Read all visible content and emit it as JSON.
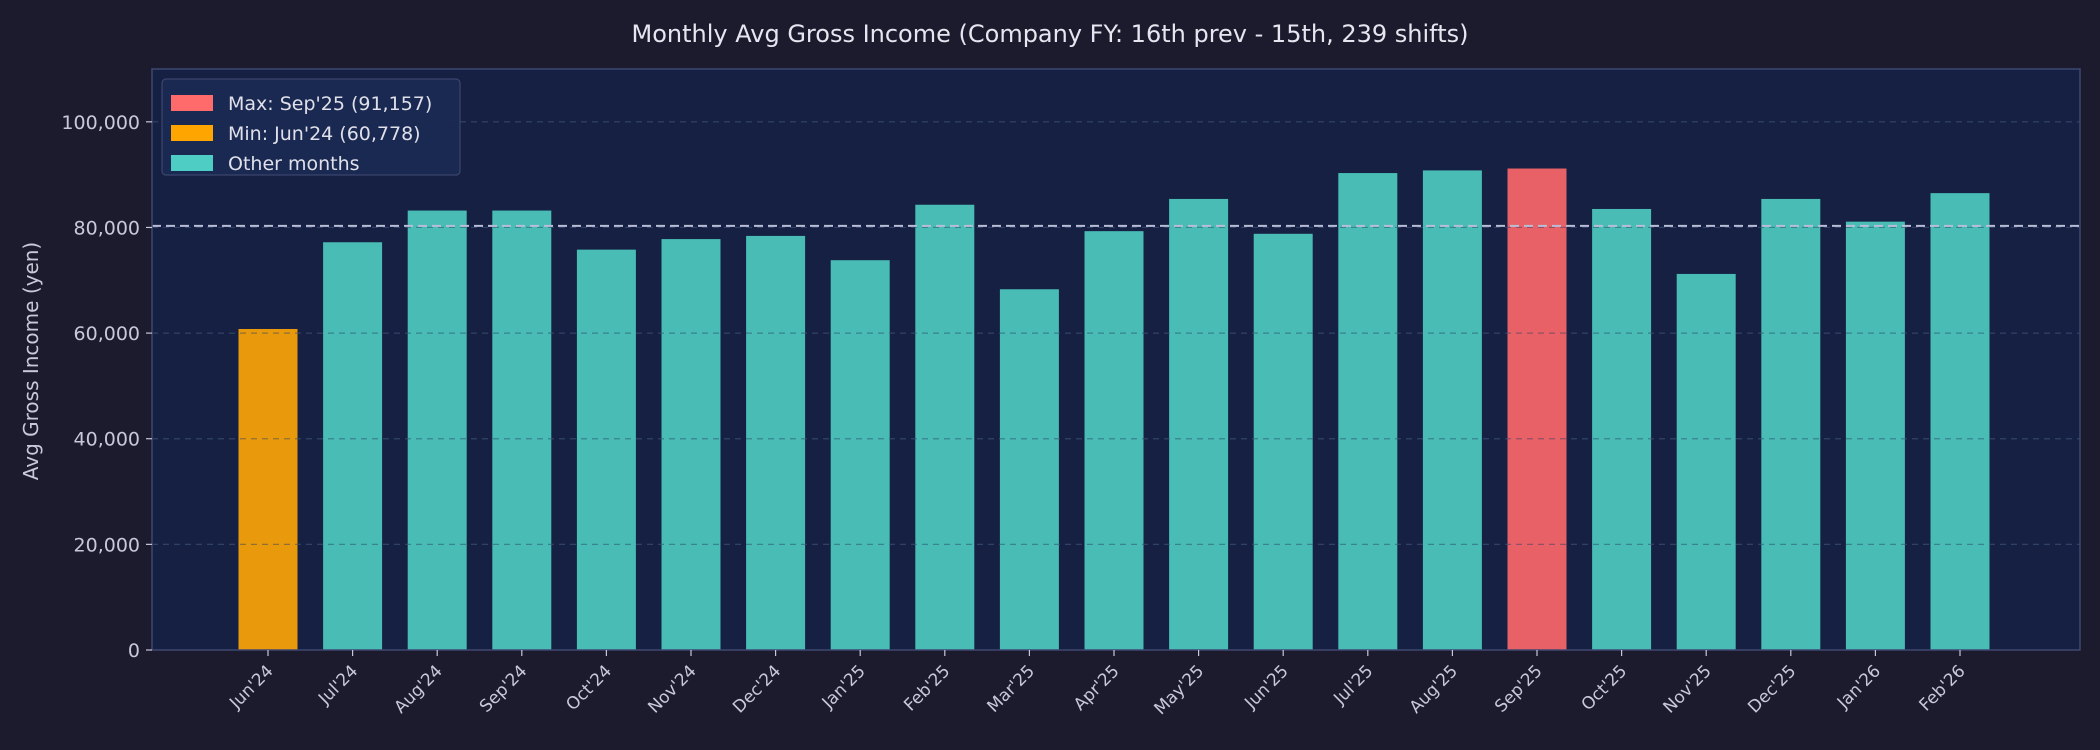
{
  "chart_data": {
    "type": "bar",
    "title": "Monthly Avg Gross Income (Company FY: 16th prev - 15th, 239 shifts)",
    "xlabel": "",
    "ylabel": "Avg Gross Income (yen)",
    "ylim": [
      0,
      110000
    ],
    "yticks": [
      0,
      20000,
      40000,
      60000,
      80000,
      100000
    ],
    "ytick_labels": [
      "0",
      "20,000",
      "40,000",
      "60,000",
      "80,000",
      "100,000"
    ],
    "grid": "horizontal dashed",
    "reference_line": 80300,
    "legend_position": "top-left",
    "categories": [
      "Jun'24",
      "Jul'24",
      "Aug'24",
      "Sep'24",
      "Oct'24",
      "Nov'24",
      "Dec'24",
      "Jan'25",
      "Feb'25",
      "Mar'25",
      "Apr'25",
      "May'25",
      "Jun'25",
      "Jul'25",
      "Aug'25",
      "Sep'25",
      "Oct'25",
      "Nov'25",
      "Dec'25",
      "Jan'26",
      "Feb'26"
    ],
    "values": [
      60778,
      77200,
      83200,
      83200,
      75800,
      77800,
      78400,
      73800,
      84300,
      68300,
      79300,
      85400,
      78800,
      90300,
      90800,
      91157,
      83500,
      71200,
      85400,
      81100,
      86500
    ],
    "max_index": 15,
    "min_index": 0,
    "legend": [
      {
        "label": "Max: Sep'25 (91,157)",
        "color": "#ff6b6b"
      },
      {
        "label": "Min: Jun'24 (60,778)",
        "color": "#ffa500"
      },
      {
        "label": "Other months",
        "color": "#4ecdc4"
      }
    ],
    "colors": {
      "max": "#e86166",
      "min": "#e89a0c",
      "other": "#48bcb5",
      "plot_bg": "#152042",
      "page_bg": "#1c1b2e",
      "axis_text": "#c8c8d8",
      "title_text": "#e6e6f0",
      "reference_line": "#b9bdd6"
    }
  }
}
